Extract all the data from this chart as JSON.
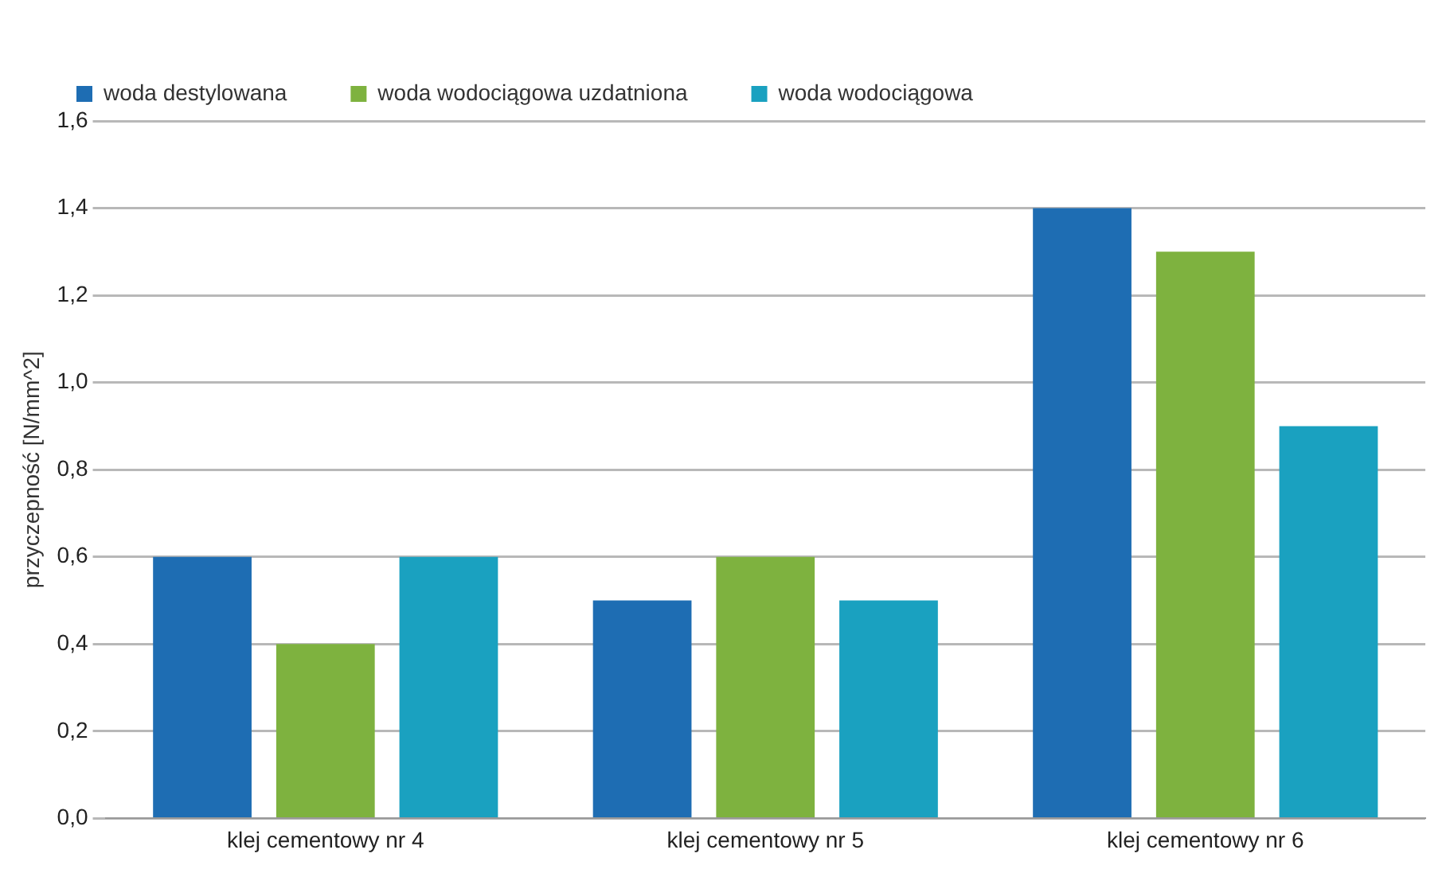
{
  "chart_data": {
    "type": "bar",
    "ylabel": "przyczepność [N/mm^2]",
    "categories": [
      "klej cementowy nr 4",
      "klej cementowy nr 5",
      "klej cementowy nr 6"
    ],
    "series": [
      {
        "name": "woda destylowana",
        "color": "#1e6db3",
        "values": [
          0.6,
          0.5,
          1.4
        ]
      },
      {
        "name": "woda wodociągowa uzdatniona",
        "color": "#7eb23f",
        "values": [
          0.4,
          0.6,
          1.3
        ]
      },
      {
        "name": "woda wodociągowa",
        "color": "#1aa1c0",
        "values": [
          0.6,
          0.5,
          0.9
        ]
      }
    ],
    "ylim": [
      0,
      1.6
    ],
    "yticks": [
      {
        "value": 0,
        "label": "0,0"
      },
      {
        "value": 0.2,
        "label": "0,2"
      },
      {
        "value": 0.4,
        "label": "0,4"
      },
      {
        "value": 0.6,
        "label": "0,6"
      },
      {
        "value": 0.8,
        "label": "0,8"
      },
      {
        "value": 1.0,
        "label": "1,0"
      },
      {
        "value": 1.2,
        "label": "1,2"
      },
      {
        "value": 1.4,
        "label": "1,4"
      },
      {
        "value": 1.6,
        "label": "1,6"
      }
    ],
    "grid": "y",
    "legend": "top"
  }
}
